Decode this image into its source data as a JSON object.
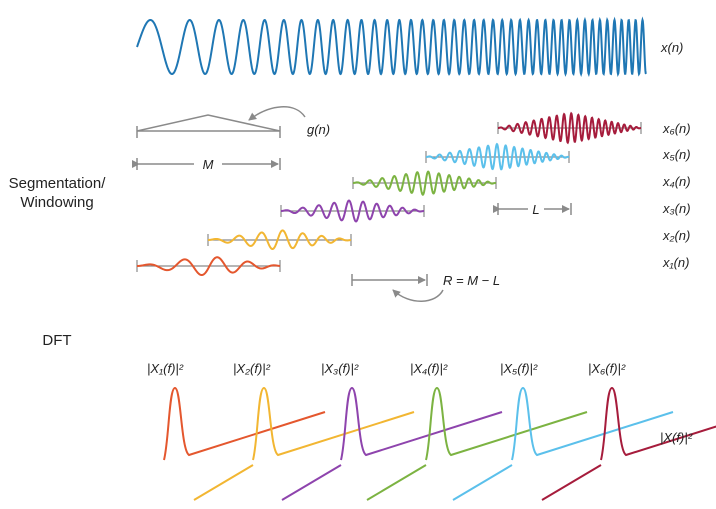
{
  "colors": {
    "signal": "#1f77b4",
    "segments": [
      "#e4572e",
      "#f2b632",
      "#8e44ad",
      "#7cb342",
      "#5bc0eb",
      "#a61c3c"
    ],
    "annotation": "#8a8a8a"
  },
  "signal": {
    "label": "x(n)"
  },
  "window": {
    "label": "g(n)",
    "length_label": "M"
  },
  "section_labels": {
    "segmentation": "Segmentation/",
    "windowing": "Windowing",
    "dft": "DFT"
  },
  "overlap": {
    "label": "L"
  },
  "hop": {
    "label": "R = M − L"
  },
  "segments": [
    {
      "label": "x₁(n)"
    },
    {
      "label": "x₂(n)"
    },
    {
      "label": "x₃(n)"
    },
    {
      "label": "x₄(n)"
    },
    {
      "label": "x₅(n)"
    },
    {
      "label": "x₆(n)"
    }
  ],
  "spectra": [
    {
      "label": "|X₁(f)|²"
    },
    {
      "label": "|X₂(f)|²"
    },
    {
      "label": "|X₃(f)|²"
    },
    {
      "label": "|X₄(f)|²"
    },
    {
      "label": "|X₅(f)|²"
    },
    {
      "label": "|X₆(f)|²"
    }
  ],
  "spectrum_total": {
    "label": "|X(f)|²"
  }
}
